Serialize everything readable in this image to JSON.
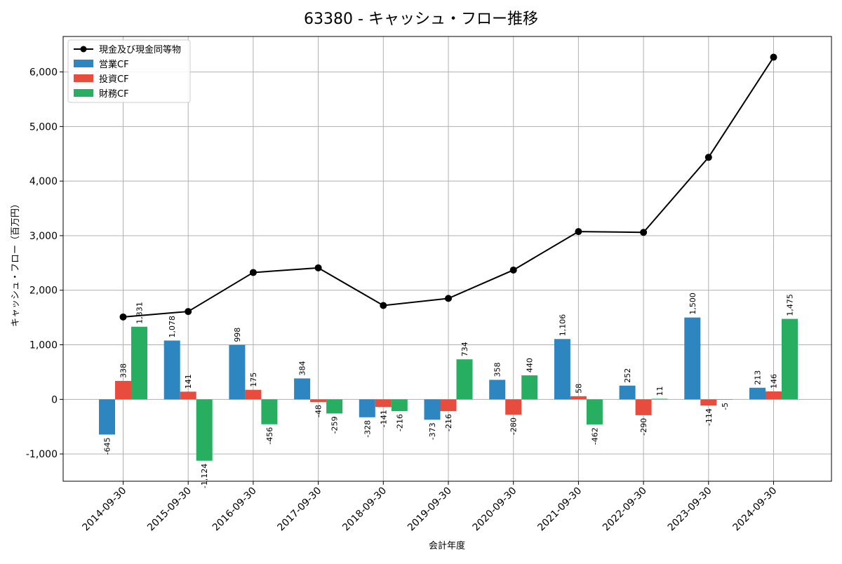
{
  "chart_data": {
    "type": "bar",
    "title": "63380 - キャッシュ・フロー推移",
    "xlabel": "会計年度",
    "ylabel": "キャッシュ・フロー（百万円）",
    "categories": [
      "2014-09-30",
      "2015-09-30",
      "2016-09-30",
      "2017-09-30",
      "2018-09-30",
      "2019-09-30",
      "2020-09-30",
      "2021-09-30",
      "2022-09-30",
      "2023-09-30",
      "2024-09-30"
    ],
    "ylim": [
      -1500,
      6650
    ],
    "yticks": [
      -1000,
      0,
      1000,
      2000,
      3000,
      4000,
      5000,
      6000
    ],
    "ytick_labels": [
      "-1,000",
      "0",
      "1,000",
      "2,000",
      "3,000",
      "4,000",
      "5,000",
      "6,000"
    ],
    "grid": true,
    "legend_position": "top-left",
    "series": [
      {
        "name": "営業CF",
        "kind": "bar",
        "color": "#2e86c1",
        "values": [
          -645,
          1078,
          998,
          384,
          -328,
          -373,
          358,
          1106,
          252,
          1500,
          213
        ],
        "labels": [
          "-645",
          "1,078",
          "998",
          "384",
          "-328",
          "-373",
          "358",
          "1,106",
          "252",
          "1,500",
          "213"
        ]
      },
      {
        "name": "投資CF",
        "kind": "bar",
        "color": "#e74c3c",
        "values": [
          338,
          141,
          175,
          -48,
          -141,
          -216,
          -280,
          58,
          -290,
          -114,
          146
        ],
        "labels": [
          "338",
          "141",
          "175",
          "-48",
          "-141",
          "-216",
          "-280",
          "58",
          "-290",
          "-114",
          "146"
        ]
      },
      {
        "name": "財務CF",
        "kind": "bar",
        "color": "#27ae60",
        "values": [
          1331,
          -1124,
          -456,
          -259,
          -216,
          734,
          440,
          -462,
          11,
          -5,
          1475
        ],
        "labels": [
          "1,331",
          "-1,124",
          "-456",
          "-259",
          "-216",
          "734",
          "440",
          "-462",
          "11",
          "-5",
          "1,475"
        ]
      },
      {
        "name": "現金及び現金同等物",
        "kind": "line",
        "color": "#000000",
        "values": [
          1510,
          1610,
          2325,
          2410,
          1720,
          1850,
          2370,
          3075,
          3060,
          4435,
          6270
        ]
      }
    ]
  }
}
